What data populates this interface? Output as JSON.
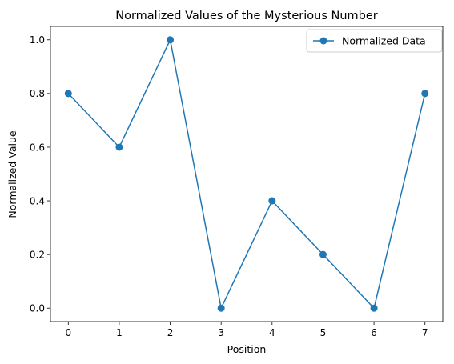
{
  "chart_data": {
    "type": "line",
    "title": "Normalized Values of the Mysterious Number",
    "xlabel": "Position",
    "ylabel": "Normalized Value",
    "x": [
      0,
      1,
      2,
      3,
      4,
      5,
      6,
      7
    ],
    "series": [
      {
        "name": "Normalized Data",
        "values": [
          0.8,
          0.6,
          1.0,
          0.0,
          0.4,
          0.2,
          0.0,
          0.8
        ],
        "color": "#1f77b4",
        "marker": "circle"
      }
    ],
    "xlim": [
      -0.35,
      7.35
    ],
    "ylim": [
      -0.05,
      1.05
    ],
    "xticks": [
      "0",
      "1",
      "2",
      "3",
      "4",
      "5",
      "6",
      "7"
    ],
    "yticks": [
      "0.0",
      "0.2",
      "0.4",
      "0.6",
      "0.8",
      "1.0"
    ],
    "grid": false,
    "legend": "top-right"
  }
}
